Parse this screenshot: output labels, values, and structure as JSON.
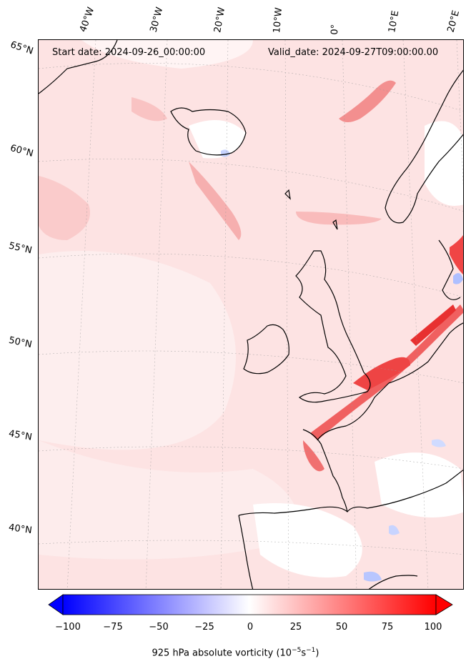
{
  "header": {
    "start_date": "Start date: 2024-09-26_00:00:00",
    "valid_date": "Valid_date: 2024-09-27T09:00:00.00"
  },
  "longitude_labels": [
    "40°W",
    "30°W",
    "20°W",
    "10°W",
    "0°",
    "10°E",
    "20°E"
  ],
  "latitude_labels": [
    "65°N",
    "60°N",
    "55°N",
    "50°N",
    "45°N",
    "40°N"
  ],
  "colorbar": {
    "label": "925 hPa absolute vorticity (10",
    "label_exp1": "−5",
    "label_mid": "s",
    "label_exp2": "−1",
    "label_end": ")",
    "ticks": [
      "−100",
      "−75",
      "−50",
      "−25",
      "0",
      "25",
      "50",
      "75",
      "100"
    ],
    "min": -100,
    "max": 100,
    "neg_color": "#0000ff",
    "pos_color": "#ff0000"
  },
  "colors": {
    "land_outline": "#000000",
    "background_field": "#fde6e6",
    "strong_positive": "#f04a4a",
    "weak_negative": "#c8d4ff"
  }
}
